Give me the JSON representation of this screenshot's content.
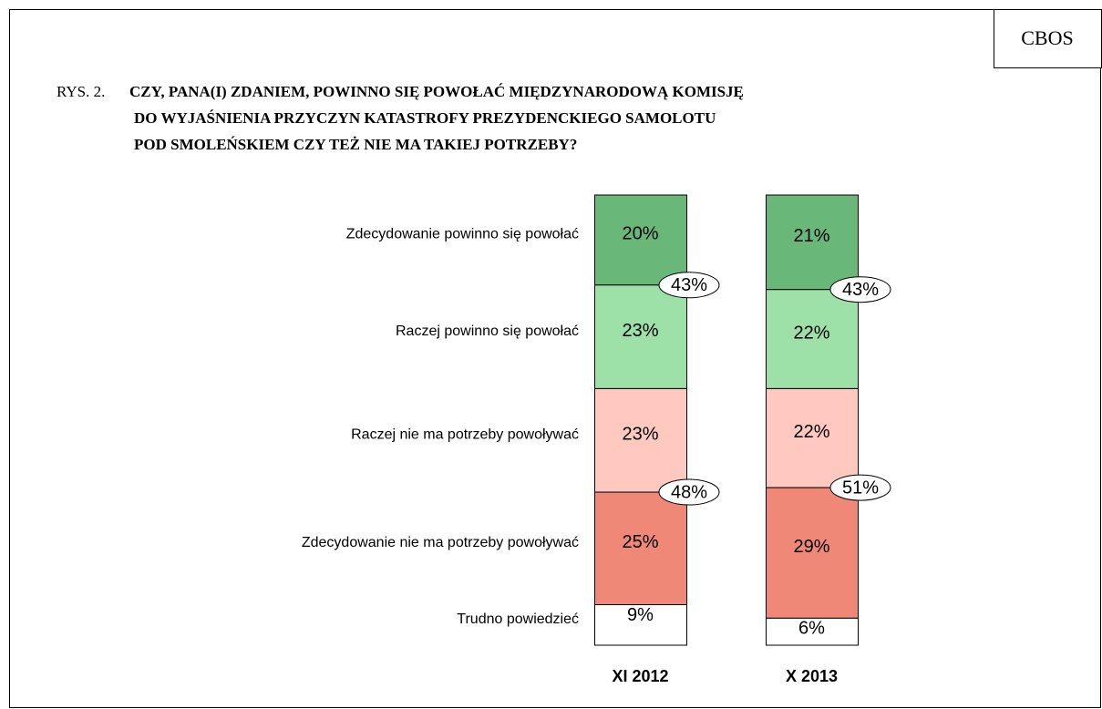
{
  "chart_data": {
    "type": "stacked_bar",
    "brand": "CBOS",
    "figure_label": "RYS. 2.",
    "title_lines": [
      "CZY, PANA(I) ZDANIEM, POWINNO SIĘ POWOŁAĆ MIĘDZYNARODOWĄ KOMISJĘ",
      "DO WYJAŚNIENIA PRZYCZYN KATASTROFY PREZYDENCKIEGO SAMOLOTU",
      "POD SMOLEŃSKIEM CZY TEŻ NIE MA TAKIEJ POTRZEBY?"
    ],
    "categories": [
      "XI 2012",
      "X 2013"
    ],
    "series": [
      {
        "name": "Zdecydowanie powinno się powołać",
        "color": "#6ab77a",
        "values": [
          20,
          21
        ],
        "value_labels": [
          "20%",
          "21%"
        ]
      },
      {
        "name": "Raczej powinno się powołać",
        "color": "#9de0a8",
        "values": [
          23,
          22
        ],
        "value_labels": [
          "23%",
          "22%"
        ]
      },
      {
        "name": "Raczej nie ma potrzeby powoływać",
        "color": "#ffc9bf",
        "values": [
          23,
          22
        ],
        "value_labels": [
          "23%",
          "22%"
        ]
      },
      {
        "name": "Zdecydowanie nie ma potrzeby powoływać",
        "color": "#f08878",
        "values": [
          25,
          29
        ],
        "value_labels": [
          "25%",
          "29%"
        ]
      },
      {
        "name": "Trudno powiedzieć",
        "color": "#ffffff",
        "values": [
          9,
          6
        ],
        "value_labels": [
          "9%",
          "6%"
        ]
      }
    ],
    "subtotals": [
      {
        "values": [
          43,
          43
        ],
        "value_labels": [
          "43%",
          "43%"
        ]
      },
      {
        "values": [
          48,
          51
        ],
        "value_labels": [
          "48%",
          "51%"
        ]
      }
    ]
  }
}
